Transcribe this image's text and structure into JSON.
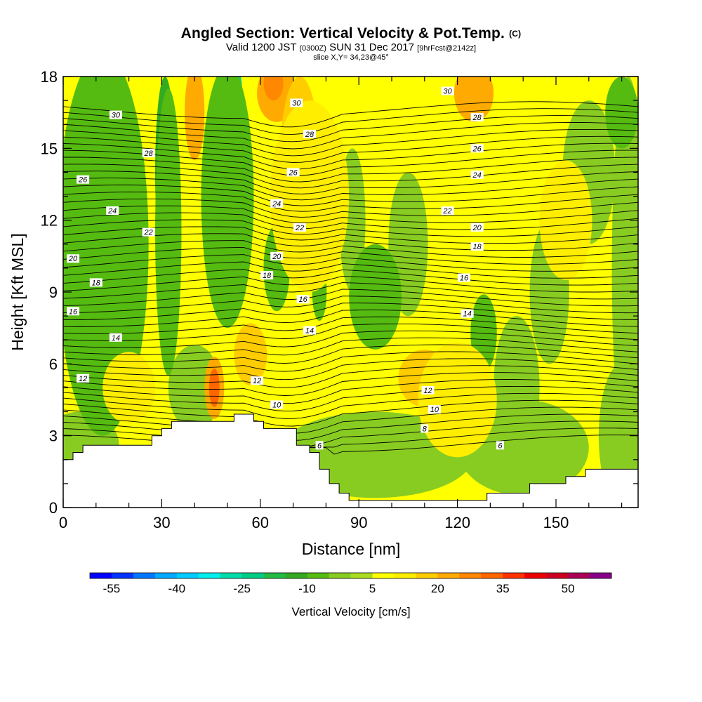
{
  "title": {
    "main": "Angled Section: Vertical Velocity & Pot.Temp.",
    "main_unit": "(C)",
    "valid": "Valid 1200 JST",
    "valid_z": "(0300Z)",
    "date": "SUN 31 Dec 2017",
    "fcst": "[9hrFcst@2142z]",
    "slice": "slice X,Y= 34,23@45°"
  },
  "chart_data": {
    "type": "heatmap",
    "xlabel": "Distance [nm]",
    "ylabel": "Height [Kft MSL]",
    "xlim": [
      0,
      175
    ],
    "ylim": [
      0,
      18
    ],
    "xticks": [
      0,
      30,
      60,
      90,
      120,
      150
    ],
    "yticks": [
      0,
      3,
      6,
      9,
      12,
      15,
      18
    ],
    "colorbar": {
      "label": "Vertical Velocity [cm/s]",
      "ticks": [
        -55,
        -40,
        -25,
        -10,
        5,
        20,
        35,
        50
      ],
      "bins": [
        -60,
        -55,
        -50,
        -45,
        -40,
        -35,
        -30,
        -25,
        -20,
        -15,
        -10,
        -5,
        0,
        5,
        10,
        15,
        20,
        25,
        30,
        35,
        40,
        45,
        50,
        55,
        60
      ],
      "colors": [
        "#0000ff",
        "#0033ff",
        "#0077ff",
        "#00aaff",
        "#00ccff",
        "#00eeee",
        "#00ddaa",
        "#00cc88",
        "#22bb44",
        "#33aa22",
        "#55bb11",
        "#88cc22",
        "#aadd22",
        "#ffff00",
        "#ffee00",
        "#ffcc00",
        "#ffaa00",
        "#ff8800",
        "#ff6600",
        "#ff3300",
        "#ee0000",
        "#cc0022",
        "#aa0055",
        "#880088"
      ]
    },
    "contour_labels": [
      {
        "v": "30",
        "x": 16,
        "y": 16.4
      },
      {
        "v": "28",
        "x": 26,
        "y": 14.8
      },
      {
        "v": "26",
        "x": 6,
        "y": 13.7
      },
      {
        "v": "24",
        "x": 15,
        "y": 12.4
      },
      {
        "v": "22",
        "x": 26,
        "y": 11.5
      },
      {
        "v": "20",
        "x": 3,
        "y": 10.4
      },
      {
        "v": "18",
        "x": 10,
        "y": 9.4
      },
      {
        "v": "16",
        "x": 3,
        "y": 8.2
      },
      {
        "v": "14",
        "x": 16,
        "y": 7.1
      },
      {
        "v": "12",
        "x": 6,
        "y": 5.4
      },
      {
        "v": "30",
        "x": 71,
        "y": 16.9
      },
      {
        "v": "28",
        "x": 75,
        "y": 15.6
      },
      {
        "v": "26",
        "x": 70,
        "y": 14.0
      },
      {
        "v": "24",
        "x": 65,
        "y": 12.7
      },
      {
        "v": "22",
        "x": 72,
        "y": 11.7
      },
      {
        "v": "20",
        "x": 65,
        "y": 10.5
      },
      {
        "v": "18",
        "x": 62,
        "y": 9.7
      },
      {
        "v": "16",
        "x": 73,
        "y": 8.7
      },
      {
        "v": "14",
        "x": 75,
        "y": 7.4
      },
      {
        "v": "12",
        "x": 59,
        "y": 5.3
      },
      {
        "v": "10",
        "x": 65,
        "y": 4.3
      },
      {
        "v": "6",
        "x": 78,
        "y": 2.6
      },
      {
        "v": "30",
        "x": 117,
        "y": 17.4
      },
      {
        "v": "28",
        "x": 126,
        "y": 16.3
      },
      {
        "v": "26",
        "x": 126,
        "y": 15.0
      },
      {
        "v": "24",
        "x": 126,
        "y": 13.9
      },
      {
        "v": "22",
        "x": 117,
        "y": 12.4
      },
      {
        "v": "20",
        "x": 126,
        "y": 11.7
      },
      {
        "v": "18",
        "x": 126,
        "y": 10.9
      },
      {
        "v": "16",
        "x": 122,
        "y": 9.6
      },
      {
        "v": "14",
        "x": 123,
        "y": 8.1
      },
      {
        "v": "12",
        "x": 111,
        "y": 4.9
      },
      {
        "v": "10",
        "x": 113,
        "y": 4.1
      },
      {
        "v": "8",
        "x": 110,
        "y": 3.3
      },
      {
        "v": "6",
        "x": 133,
        "y": 2.6
      }
    ],
    "terrain": [
      [
        0,
        2
      ],
      [
        3,
        2
      ],
      [
        3,
        2.3
      ],
      [
        6,
        2.3
      ],
      [
        6,
        2.6
      ],
      [
        27,
        2.6
      ],
      [
        27,
        3
      ],
      [
        30,
        3
      ],
      [
        30,
        3.3
      ],
      [
        33,
        3.3
      ],
      [
        33,
        3.6
      ],
      [
        52,
        3.6
      ],
      [
        52,
        3.9
      ],
      [
        58,
        3.9
      ],
      [
        58,
        3.6
      ],
      [
        61,
        3.6
      ],
      [
        61,
        3.3
      ],
      [
        71,
        3.3
      ],
      [
        71,
        2.6
      ],
      [
        75,
        2.6
      ],
      [
        75,
        2.3
      ],
      [
        78,
        2.3
      ],
      [
        78,
        1.6
      ],
      [
        81,
        1.6
      ],
      [
        81,
        1
      ],
      [
        84,
        1
      ],
      [
        84,
        0.6
      ],
      [
        87,
        0.6
      ],
      [
        87,
        0.3
      ],
      [
        129,
        0.3
      ],
      [
        129,
        0.6
      ],
      [
        142,
        0.6
      ],
      [
        142,
        1
      ],
      [
        153,
        1
      ],
      [
        153,
        1.3
      ],
      [
        159,
        1.3
      ],
      [
        159,
        1.6
      ],
      [
        175,
        1.6
      ]
    ],
    "regions": [
      {
        "w": -15,
        "cx": 12,
        "cy": 13.5,
        "rx": 12,
        "ry": 5
      },
      {
        "w": -10,
        "cx": 12,
        "cy": 11,
        "rx": 14,
        "ry": 8
      },
      {
        "w": -15,
        "cx": 31,
        "cy": 14,
        "rx": 3,
        "ry": 4
      },
      {
        "w": -10,
        "cx": 32,
        "cy": 11.5,
        "rx": 4,
        "ry": 6
      },
      {
        "w": -20,
        "cx": 51,
        "cy": 15,
        "rx": 5,
        "ry": 3.5
      },
      {
        "w": -25,
        "cx": 53,
        "cy": 13.5,
        "rx": 2.5,
        "ry": 5
      },
      {
        "w": -10,
        "cx": 50,
        "cy": 13,
        "rx": 8,
        "ry": 5.5
      },
      {
        "w": -10,
        "cx": 65,
        "cy": 10,
        "rx": 4,
        "ry": 1.8
      },
      {
        "w": -10,
        "cx": 78,
        "cy": 9,
        "rx": 2.2,
        "ry": 1.2
      },
      {
        "w": -10,
        "cx": 95,
        "cy": 8.8,
        "rx": 8,
        "ry": 2.2
      },
      {
        "w": -10,
        "cx": 128,
        "cy": 7.3,
        "rx": 4,
        "ry": 1.6
      },
      {
        "w": -10,
        "cx": 170,
        "cy": 16.5,
        "rx": 5,
        "ry": 1.5
      },
      {
        "w": 20,
        "cx": 65,
        "cy": 17.3,
        "rx": 6,
        "ry": 1.2
      },
      {
        "w": 25,
        "cx": 64,
        "cy": 17.7,
        "rx": 3,
        "ry": 0.7
      },
      {
        "w": 20,
        "cx": 40,
        "cy": 16.5,
        "rx": 3,
        "ry": 2
      },
      {
        "w": 20,
        "cx": 125,
        "cy": 17.3,
        "rx": 6,
        "ry": 1.2
      },
      {
        "w": 15,
        "cx": 72,
        "cy": 14.5,
        "rx": 6,
        "ry": 3.5
      },
      {
        "w": 20,
        "cx": 46,
        "cy": 5,
        "rx": 3,
        "ry": 1.3
      },
      {
        "w": 30,
        "cx": 46,
        "cy": 5,
        "rx": 1.6,
        "ry": 0.8
      },
      {
        "w": 15,
        "cx": 57,
        "cy": 6.4,
        "rx": 5,
        "ry": 1.3
      },
      {
        "w": 15,
        "cx": 110,
        "cy": 5.4,
        "rx": 8,
        "ry": 1.2
      },
      {
        "w": 10,
        "cx": 120,
        "cy": 4.5,
        "rx": 12,
        "ry": 2.4
      },
      {
        "w": 10,
        "cx": 75,
        "cy": 13,
        "rx": 12,
        "ry": 4
      },
      {
        "w": 10,
        "cx": 153,
        "cy": 12,
        "rx": 8,
        "ry": 2.5
      },
      {
        "w": 10,
        "cx": 20,
        "cy": 5,
        "rx": 8,
        "ry": 1.5
      }
    ],
    "greens": [
      {
        "cx": 5,
        "cy": 2.6,
        "rx": 12,
        "ry": 1.4
      },
      {
        "cx": 40,
        "cy": 5,
        "rx": 8,
        "ry": 1.8
      },
      {
        "cx": 95,
        "cy": 2.2,
        "rx": 30,
        "ry": 1.8
      },
      {
        "cx": 140,
        "cy": 2.5,
        "rx": 20,
        "ry": 2
      },
      {
        "cx": 170,
        "cy": 3,
        "rx": 7,
        "ry": 3
      },
      {
        "cx": 172,
        "cy": 10,
        "rx": 5,
        "ry": 8
      },
      {
        "cx": 105,
        "cy": 11,
        "rx": 6,
        "ry": 3
      },
      {
        "cx": 148,
        "cy": 9,
        "rx": 6,
        "ry": 3
      },
      {
        "cx": 88,
        "cy": 12,
        "rx": 4,
        "ry": 3
      },
      {
        "cx": 138,
        "cy": 5,
        "rx": 7,
        "ry": 3
      },
      {
        "cx": 8,
        "cy": 9,
        "rx": 8,
        "ry": 2
      },
      {
        "cx": 160,
        "cy": 14,
        "rx": 8,
        "ry": 3
      }
    ]
  }
}
